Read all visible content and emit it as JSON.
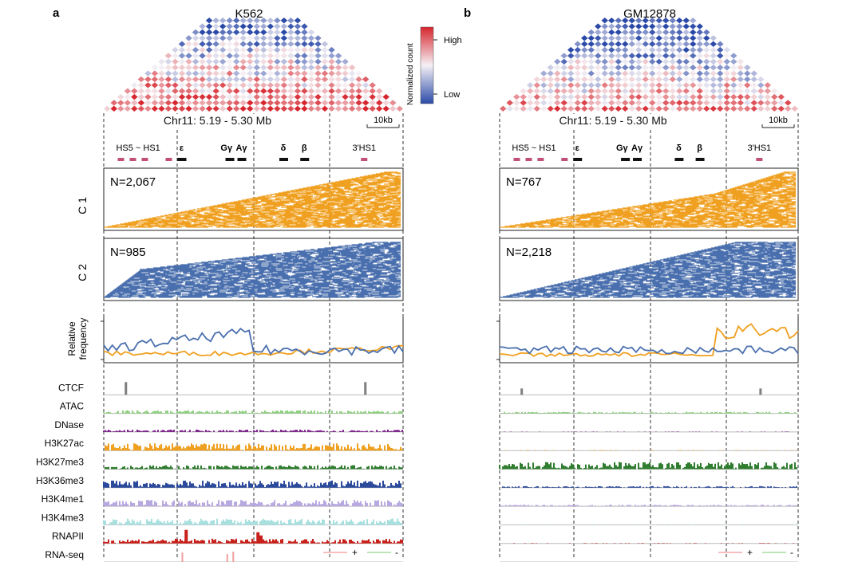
{
  "panels": [
    {
      "letter": "a",
      "title": "K562",
      "region": "Chr11: 5.19  - 5.30 Mb",
      "scale": "10kb",
      "c1_n": "N=2,067",
      "c2_n": "N=985"
    },
    {
      "letter": "b",
      "title": "GM12878",
      "region": "Chr11: 5.19  - 5.30 Mb",
      "scale": "10kb",
      "c1_n": "N=767",
      "c2_n": "N=2,218"
    }
  ],
  "genes": [
    {
      "label": "HS5 ~ HS1"
    },
    {
      "label": "ε"
    },
    {
      "label": "Gγ"
    },
    {
      "label": "Aγ"
    },
    {
      "label": "δ"
    },
    {
      "label": "β"
    },
    {
      "label": "3'HS1"
    }
  ],
  "row_labels": {
    "c1": "C 1",
    "c2": "C 2",
    "relfreq": "Relative\nfrequency"
  },
  "colorbar": {
    "title": "Normalized count",
    "high": "High",
    "low": "Low",
    "high_color": "#d7262e",
    "low_color": "#2b4aa8"
  },
  "tracks": [
    {
      "name": "CTCF",
      "color": "#7f7f7f"
    },
    {
      "name": "ATAC",
      "color": "#8fd080"
    },
    {
      "name": "DNase",
      "color": "#7a1f8a"
    },
    {
      "name": "H3K27ac",
      "color": "#f0a020"
    },
    {
      "name": "H3K27me3",
      "color": "#2f7d2f"
    },
    {
      "name": "H3K36me3",
      "color": "#2c4a9c"
    },
    {
      "name": "H3K4me1",
      "color": "#b8a8e0"
    },
    {
      "name": "H3K4me3",
      "color": "#a8e0e0"
    },
    {
      "name": "RNAPII",
      "color": "#c8201a"
    },
    {
      "name": "RNA-seq",
      "color": "#f0a0a0"
    }
  ],
  "rnaseq_legend": {
    "plus": "+",
    "minus": "-",
    "plus_color": "#f4a8a8",
    "minus_color": "#a8dca0"
  },
  "series_colors": {
    "c1": "#f0a020",
    "c2": "#4a6fae"
  }
}
